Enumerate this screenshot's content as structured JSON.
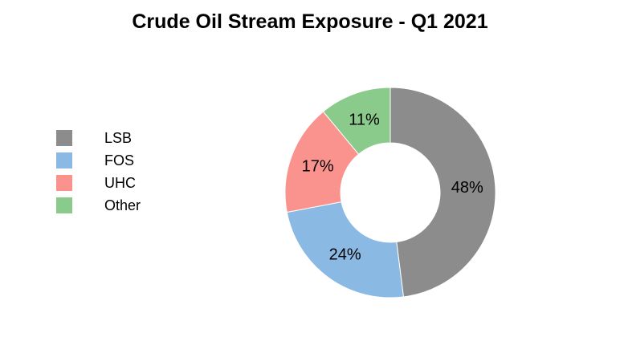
{
  "title": "Crude Oil Stream Exposure - Q1 2021",
  "chart_data": {
    "type": "pie",
    "subtype": "donut",
    "title": "Crude Oil Stream Exposure - Q1 2021",
    "categories": [
      "LSB",
      "FOS",
      "UHC",
      "Other"
    ],
    "values": [
      48,
      24,
      17,
      11
    ],
    "labels": [
      "48%",
      "24%",
      "17%",
      "11%"
    ],
    "colors": [
      "#8C8C8C",
      "#8ABAE4",
      "#FA938E",
      "#8ACA8A"
    ],
    "units": "percent",
    "start_angle": "top",
    "direction": "clockwise",
    "donut_hole_ratio": 0.47,
    "legend_position": "left",
    "label_color": "#000000",
    "background_color": "#FFFFFF",
    "slice_edge_color": "#FFFFFF"
  },
  "legend": {
    "items": [
      {
        "label": "LSB",
        "color": "#8C8C8C"
      },
      {
        "label": "FOS",
        "color": "#8ABAE4"
      },
      {
        "label": "UHC",
        "color": "#FA938E"
      },
      {
        "label": "Other",
        "color": "#8ACA8A"
      }
    ]
  }
}
